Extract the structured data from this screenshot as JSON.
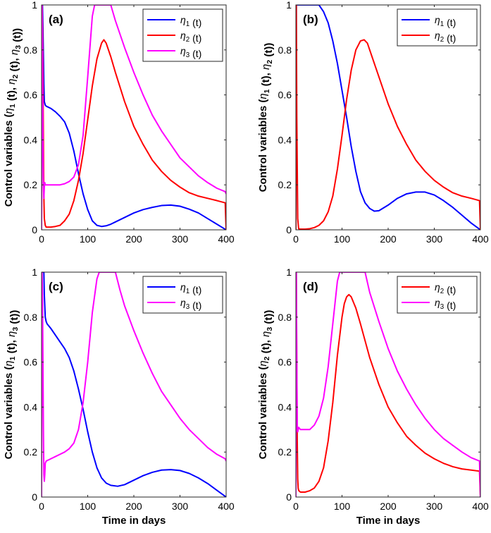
{
  "chart_data": [
    {
      "type": "line",
      "panel_label": "(a)",
      "xlabel": "",
      "ylabel": "Control variables (η1 (t), η2 (t), η3 (t))",
      "xlim": [
        0,
        400
      ],
      "ylim": [
        0,
        1
      ],
      "xticks": [
        "0",
        "100",
        "200",
        "300",
        "400"
      ],
      "yticks": [
        "0",
        "0.2",
        "0.4",
        "0.6",
        "0.8",
        "1"
      ],
      "legend_position": "top-right",
      "series": [
        {
          "name": "η1 (t)",
          "color": "#0000ff",
          "x": [
            0,
            2,
            3,
            5,
            6,
            8,
            10,
            20,
            30,
            40,
            50,
            60,
            70,
            80,
            90,
            100,
            110,
            120,
            130,
            140,
            150,
            160,
            180,
            200,
            220,
            240,
            260,
            280,
            300,
            320,
            340,
            360,
            380,
            400
          ],
          "y": [
            1,
            1,
            0.9,
            0.65,
            0.57,
            0.555,
            0.55,
            0.54,
            0.525,
            0.505,
            0.48,
            0.43,
            0.35,
            0.25,
            0.16,
            0.09,
            0.04,
            0.02,
            0.015,
            0.018,
            0.025,
            0.035,
            0.055,
            0.075,
            0.09,
            0.1,
            0.108,
            0.11,
            0.105,
            0.092,
            0.075,
            0.05,
            0.025,
            0
          ]
        },
        {
          "name": "η2 (t)",
          "color": "#ff0000",
          "x": [
            0,
            1,
            2,
            3,
            4,
            5,
            6,
            8,
            10,
            20,
            30,
            40,
            50,
            60,
            70,
            80,
            90,
            100,
            110,
            120,
            130,
            135,
            140,
            150,
            160,
            180,
            200,
            220,
            240,
            260,
            280,
            300,
            320,
            340,
            360,
            380,
            398,
            400
          ],
          "y": [
            0,
            1,
            0.9,
            0.7,
            0.4,
            0.15,
            0.05,
            0.02,
            0.012,
            0.012,
            0.015,
            0.02,
            0.04,
            0.07,
            0.13,
            0.22,
            0.34,
            0.49,
            0.64,
            0.76,
            0.83,
            0.845,
            0.83,
            0.77,
            0.7,
            0.57,
            0.46,
            0.38,
            0.31,
            0.26,
            0.22,
            0.19,
            0.165,
            0.15,
            0.14,
            0.13,
            0.12,
            0
          ]
        },
        {
          "name": "η3 (t)",
          "color": "#ff00ff",
          "x": [
            0,
            1,
            2,
            3,
            4,
            5,
            6,
            7,
            8,
            10,
            15,
            20,
            30,
            40,
            50,
            60,
            70,
            80,
            90,
            100,
            110,
            115,
            150,
            160,
            180,
            200,
            220,
            240,
            260,
            280,
            300,
            320,
            340,
            360,
            380,
            398,
            400
          ],
          "y": [
            0,
            1,
            0.8,
            0.4,
            0.2,
            0.14,
            0.19,
            0.21,
            0.2,
            0.2,
            0.2,
            0.2,
            0.2,
            0.2,
            0.205,
            0.215,
            0.235,
            0.29,
            0.42,
            0.68,
            0.95,
            1,
            1,
            0.93,
            0.81,
            0.7,
            0.6,
            0.51,
            0.44,
            0.38,
            0.32,
            0.28,
            0.24,
            0.21,
            0.185,
            0.17,
            0.16
          ]
        }
      ]
    },
    {
      "type": "line",
      "panel_label": "(b)",
      "xlabel": "",
      "ylabel": "Control variables (η1 (t), η2 (t))",
      "xlim": [
        0,
        400
      ],
      "ylim": [
        0,
        1
      ],
      "xticks": [
        "0",
        "100",
        "200",
        "300",
        "400"
      ],
      "yticks": [
        "0",
        "0.2",
        "0.4",
        "0.6",
        "0.8",
        "1"
      ],
      "legend_position": "top-right",
      "series": [
        {
          "name": "η1 (t)",
          "color": "#0000ff",
          "x": [
            0,
            1,
            50,
            60,
            70,
            80,
            90,
            100,
            110,
            120,
            130,
            140,
            150,
            160,
            170,
            180,
            200,
            220,
            240,
            260,
            280,
            300,
            320,
            340,
            360,
            380,
            400
          ],
          "y": [
            0,
            1,
            1,
            0.97,
            0.92,
            0.84,
            0.74,
            0.62,
            0.5,
            0.37,
            0.26,
            0.17,
            0.12,
            0.095,
            0.083,
            0.085,
            0.11,
            0.14,
            0.16,
            0.168,
            0.168,
            0.155,
            0.13,
            0.1,
            0.065,
            0.03,
            0
          ]
        },
        {
          "name": "η2 (t)",
          "color": "#ff0000",
          "x": [
            0,
            1,
            2,
            4,
            6,
            10,
            20,
            30,
            40,
            50,
            60,
            70,
            80,
            90,
            100,
            110,
            120,
            130,
            140,
            148,
            155,
            160,
            180,
            200,
            220,
            240,
            260,
            280,
            300,
            320,
            340,
            360,
            380,
            398,
            400
          ],
          "y": [
            0,
            1,
            0.5,
            0.05,
            0.005,
            0.003,
            0.003,
            0.005,
            0.01,
            0.02,
            0.04,
            0.08,
            0.15,
            0.27,
            0.42,
            0.58,
            0.71,
            0.8,
            0.84,
            0.845,
            0.83,
            0.8,
            0.68,
            0.56,
            0.46,
            0.38,
            0.31,
            0.26,
            0.22,
            0.19,
            0.165,
            0.15,
            0.14,
            0.13,
            0
          ]
        }
      ]
    },
    {
      "type": "line",
      "panel_label": "(c)",
      "xlabel": "Time in days",
      "ylabel": "Control variables (η1 (t), η3 (t))",
      "xlim": [
        0,
        400
      ],
      "ylim": [
        0,
        1
      ],
      "xticks": [
        "0",
        "100",
        "200",
        "300",
        "400"
      ],
      "yticks": [
        "0",
        "0.2",
        "0.4",
        "0.6",
        "0.8",
        "1"
      ],
      "legend_position": "top-right",
      "series": [
        {
          "name": "η1 (t)",
          "color": "#0000ff",
          "x": [
            0,
            1,
            5,
            6,
            8,
            10,
            12,
            20,
            30,
            40,
            50,
            60,
            70,
            80,
            90,
            100,
            110,
            120,
            130,
            140,
            150,
            165,
            180,
            200,
            220,
            240,
            260,
            280,
            300,
            320,
            340,
            360,
            380,
            400
          ],
          "y": [
            1,
            1,
            1,
            0.9,
            0.8,
            0.78,
            0.77,
            0.75,
            0.72,
            0.69,
            0.66,
            0.62,
            0.56,
            0.48,
            0.39,
            0.29,
            0.2,
            0.13,
            0.085,
            0.062,
            0.052,
            0.048,
            0.055,
            0.075,
            0.095,
            0.11,
            0.12,
            0.122,
            0.118,
            0.105,
            0.085,
            0.06,
            0.03,
            0
          ]
        },
        {
          "name": "η3 (t)",
          "color": "#ff00ff",
          "x": [
            0,
            1,
            2,
            3,
            4,
            5,
            6,
            7,
            8,
            10,
            15,
            20,
            30,
            40,
            50,
            60,
            70,
            80,
            90,
            100,
            110,
            120,
            125,
            160,
            170,
            180,
            200,
            220,
            240,
            260,
            280,
            300,
            320,
            340,
            360,
            380,
            398,
            400
          ],
          "y": [
            0,
            1,
            0.9,
            0.6,
            0.3,
            0.1,
            0.07,
            0.1,
            0.15,
            0.16,
            0.165,
            0.17,
            0.18,
            0.19,
            0.2,
            0.215,
            0.24,
            0.3,
            0.42,
            0.6,
            0.82,
            0.97,
            1,
            1,
            0.92,
            0.85,
            0.74,
            0.64,
            0.55,
            0.47,
            0.41,
            0.35,
            0.3,
            0.26,
            0.22,
            0.19,
            0.17,
            0.16
          ]
        }
      ]
    },
    {
      "type": "line",
      "panel_label": "(d)",
      "xlabel": "Time in days",
      "ylabel": "Control variables (η2 (t), η3 (t))",
      "xlim": [
        0,
        400
      ],
      "ylim": [
        0,
        1
      ],
      "xticks": [
        "0",
        "100",
        "200",
        "300",
        "400"
      ],
      "yticks": [
        "0",
        "0.2",
        "0.4",
        "0.6",
        "0.8",
        "1"
      ],
      "legend_position": "top-right",
      "series": [
        {
          "name": "η2 (t)",
          "color": "#ff0000",
          "x": [
            0,
            1,
            2,
            3,
            4,
            5,
            6,
            8,
            10,
            20,
            30,
            40,
            50,
            60,
            70,
            80,
            90,
            100,
            105,
            110,
            115,
            120,
            130,
            140,
            160,
            180,
            200,
            220,
            240,
            260,
            280,
            300,
            320,
            340,
            360,
            380,
            398,
            400
          ],
          "y": [
            0,
            1,
            0.6,
            0.25,
            0.08,
            0.04,
            0.03,
            0.025,
            0.022,
            0.022,
            0.028,
            0.04,
            0.07,
            0.13,
            0.25,
            0.42,
            0.63,
            0.8,
            0.86,
            0.89,
            0.9,
            0.89,
            0.84,
            0.77,
            0.62,
            0.5,
            0.4,
            0.33,
            0.27,
            0.23,
            0.195,
            0.17,
            0.15,
            0.135,
            0.125,
            0.12,
            0.115,
            0
          ]
        },
        {
          "name": "η3 (t)",
          "color": "#ff00ff",
          "x": [
            0,
            1,
            2,
            3,
            4,
            5,
            6,
            8,
            10,
            15,
            20,
            30,
            40,
            50,
            60,
            70,
            80,
            90,
            95,
            150,
            160,
            180,
            200,
            220,
            240,
            260,
            280,
            300,
            320,
            340,
            360,
            380,
            398,
            400
          ],
          "y": [
            0,
            1,
            0.6,
            0.3,
            0.29,
            0.3,
            0.31,
            0.305,
            0.3,
            0.3,
            0.3,
            0.3,
            0.32,
            0.36,
            0.44,
            0.58,
            0.77,
            0.96,
            1,
            1,
            0.91,
            0.78,
            0.66,
            0.56,
            0.48,
            0.41,
            0.35,
            0.3,
            0.26,
            0.23,
            0.2,
            0.175,
            0.16,
            0
          ]
        }
      ]
    }
  ]
}
